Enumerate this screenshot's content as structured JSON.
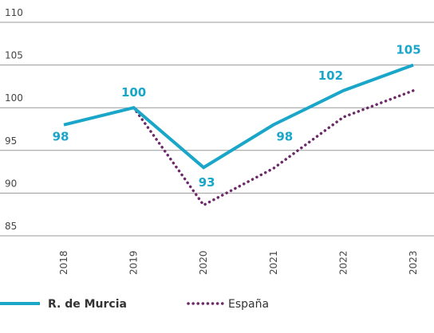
{
  "chart_data": {
    "type": "line",
    "x": [
      "2018",
      "2019",
      "2020",
      "2021",
      "2022",
      "2023"
    ],
    "series": [
      {
        "name": "R. de Murcia",
        "color": "#1aa6c8",
        "style": "solid",
        "values": [
          98,
          100,
          93,
          98,
          102,
          105
        ]
      },
      {
        "name": "España",
        "color": "#6d2a6a",
        "style": "dotted",
        "values": [
          null,
          100,
          88.6,
          92.9,
          98.9,
          102
        ]
      }
    ],
    "ylim": [
      85,
      110
    ],
    "yticks": [
      85,
      90,
      95,
      100,
      105,
      110
    ],
    "grid": true
  }
}
